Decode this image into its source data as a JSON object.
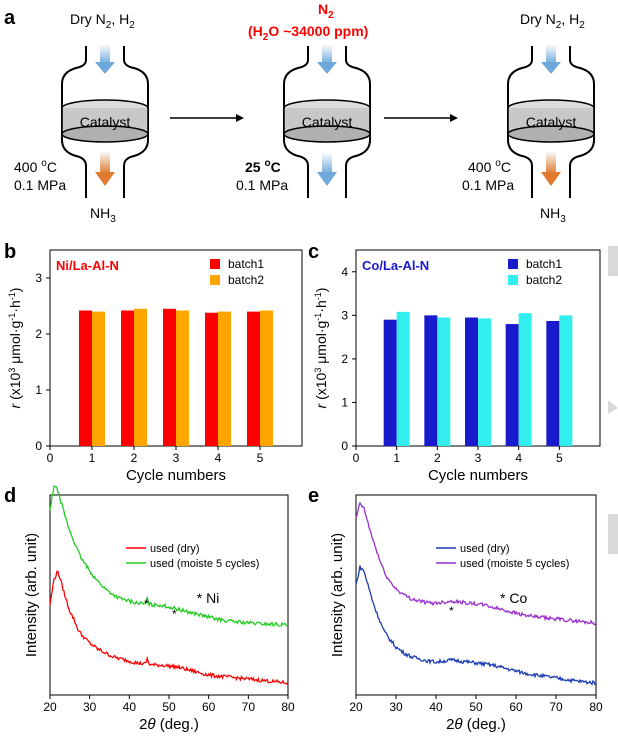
{
  "panel_letters": {
    "a": "a",
    "b": "b",
    "c": "c",
    "d": "d",
    "e": "e"
  },
  "scheme": {
    "catalyst_label": "Catalyst",
    "reactor1": {
      "gas_in": "Dry N2, H2",
      "gas_in_parts": [
        "Dry N",
        "2",
        ", H",
        "2"
      ],
      "temp": "400 ",
      "temp_unit": "o",
      "temp_c": "C",
      "pressure": "0.1 MPa",
      "gas_out": "NH",
      "gas_out_sub": "3"
    },
    "reactor2": {
      "gas_in_top": "N",
      "gas_in_top_sub": "2",
      "gas_in_cond_a": "(H",
      "gas_in_cond_sub": "2",
      "gas_in_cond_b": "O ~34000 ppm)",
      "temp": "25 ",
      "temp_unit": "o",
      "temp_c": "C",
      "pressure": "0.1 MPa"
    },
    "reactor3": {
      "gas_in_parts": [
        "Dry N",
        "2",
        ", H",
        "2"
      ],
      "temp": "400 ",
      "temp_unit": "o",
      "temp_c": "C",
      "pressure": "0.1 MPa",
      "gas_out": "NH",
      "gas_out_sub": "3"
    },
    "colors": {
      "in_arrow": "#6fa8dc",
      "out_arrow": "#e07a2e",
      "catalyst_fill": "#c8c8c8",
      "highlight": "#ff0000"
    }
  },
  "chart_data": [
    {
      "type": "bar",
      "panel": "b",
      "inset_label": "Ni/La-Al-N",
      "inset_color": "#ff0000",
      "categories": [
        "1",
        "2",
        "3",
        "4",
        "5"
      ],
      "series": [
        {
          "name": "batch1",
          "color": "#ff0000",
          "values": [
            2.42,
            2.42,
            2.45,
            2.38,
            2.4
          ]
        },
        {
          "name": "batch2",
          "color": "#ffa500",
          "values": [
            2.4,
            2.45,
            2.42,
            2.4,
            2.42
          ]
        }
      ],
      "xlabel": "Cycle numbers",
      "ylabel_parts": [
        "r",
        " (x10",
        "3",
        " μmol·g",
        "-1",
        "·h",
        "-1",
        ")"
      ],
      "xlim": [
        0,
        6
      ],
      "ylim": [
        0,
        3.5
      ],
      "xticks": [
        "0",
        "1",
        "2",
        "3",
        "4",
        "5"
      ],
      "yticks": [
        "0",
        "1",
        "2",
        "3"
      ],
      "legend": "top-right"
    },
    {
      "type": "bar",
      "panel": "c",
      "inset_label": "Co/La-Al-N",
      "inset_color": "#1a1acd",
      "categories": [
        "1",
        "2",
        "3",
        "4",
        "5"
      ],
      "series": [
        {
          "name": "batch1",
          "color": "#1a1acd",
          "values": [
            2.9,
            3.0,
            2.95,
            2.8,
            2.87
          ]
        },
        {
          "name": "batch2",
          "color": "#33eeee",
          "values": [
            3.08,
            2.95,
            2.93,
            3.05,
            3.0
          ]
        }
      ],
      "xlabel": "Cycle numbers",
      "ylabel_parts": [
        "r",
        " (x10",
        "3",
        " μmol·g",
        "-1",
        "·h",
        "-1",
        ")"
      ],
      "xlim": [
        0,
        6
      ],
      "ylim": [
        0,
        4.5
      ],
      "xticks": [
        "0",
        "1",
        "2",
        "3",
        "4",
        "5"
      ],
      "yticks": [
        "0",
        "1",
        "2",
        "3",
        "4"
      ],
      "legend": "top-right"
    },
    {
      "type": "line",
      "panel": "d",
      "xlabel": "2θ (deg.)",
      "ylabel": "Intensity (arb. unit)",
      "xlim": [
        20,
        80
      ],
      "xticks": [
        "20",
        "30",
        "40",
        "50",
        "60",
        "70",
        "80"
      ],
      "series": [
        {
          "name": "used (dry)",
          "color": "#ff0000",
          "x": [
            20,
            21,
            22,
            23,
            24,
            25,
            26,
            27,
            28,
            30,
            32,
            34,
            36,
            38,
            40,
            42,
            44,
            44.5,
            45,
            46,
            48,
            50,
            52,
            54,
            56,
            58,
            60,
            62,
            65,
            70,
            75,
            80
          ],
          "y": [
            0.45,
            0.58,
            0.62,
            0.55,
            0.48,
            0.42,
            0.38,
            0.33,
            0.3,
            0.26,
            0.23,
            0.21,
            0.19,
            0.18,
            0.17,
            0.16,
            0.155,
            0.18,
            0.155,
            0.15,
            0.15,
            0.145,
            0.14,
            0.13,
            0.12,
            0.11,
            0.1,
            0.095,
            0.09,
            0.08,
            0.07,
            0.06
          ]
        },
        {
          "name": "used (moiste 5 cycles)",
          "color": "#22cc22",
          "x": [
            20,
            21,
            22,
            23,
            24,
            25,
            26,
            27,
            28,
            30,
            32,
            34,
            36,
            38,
            40,
            42,
            44,
            44.5,
            45,
            46,
            48,
            50,
            52,
            54,
            56,
            58,
            60,
            62,
            65,
            70,
            75,
            80
          ],
          "y": [
            0.92,
            1.05,
            1.02,
            0.95,
            0.88,
            0.82,
            0.77,
            0.72,
            0.68,
            0.62,
            0.57,
            0.53,
            0.5,
            0.48,
            0.47,
            0.46,
            0.455,
            0.48,
            0.455,
            0.45,
            0.45,
            0.44,
            0.43,
            0.42,
            0.41,
            0.4,
            0.39,
            0.38,
            0.37,
            0.36,
            0.355,
            0.35
          ]
        }
      ],
      "annotations": [
        "*",
        "*",
        "* Ni"
      ],
      "legend": "top-right"
    },
    {
      "type": "line",
      "panel": "e",
      "xlabel": "2θ (deg.)",
      "ylabel": "Intensity (arb. unit)",
      "xlim": [
        20,
        80
      ],
      "xticks": [
        "20",
        "30",
        "40",
        "50",
        "60",
        "70",
        "80"
      ],
      "series": [
        {
          "name": "used (dry)",
          "color": "#1a3cb4",
          "x": [
            20,
            21,
            22,
            23,
            24,
            25,
            26,
            27,
            28,
            30,
            32,
            34,
            36,
            38,
            40,
            42,
            44,
            46,
            48,
            50,
            52,
            54,
            56,
            58,
            60,
            62,
            65,
            70,
            75,
            80
          ],
          "y": [
            0.55,
            0.64,
            0.62,
            0.55,
            0.48,
            0.42,
            0.37,
            0.32,
            0.29,
            0.24,
            0.21,
            0.19,
            0.18,
            0.17,
            0.165,
            0.17,
            0.175,
            0.17,
            0.165,
            0.16,
            0.155,
            0.15,
            0.14,
            0.13,
            0.12,
            0.11,
            0.1,
            0.085,
            0.07,
            0.06
          ]
        },
        {
          "name": "used (moiste 5 cycles)",
          "color": "#9a2fd0",
          "x": [
            20,
            21,
            22,
            23,
            24,
            25,
            26,
            27,
            28,
            30,
            32,
            34,
            36,
            38,
            40,
            42,
            44,
            46,
            48,
            50,
            52,
            54,
            56,
            58,
            60,
            62,
            65,
            70,
            75,
            80
          ],
          "y": [
            0.88,
            0.96,
            0.93,
            0.86,
            0.79,
            0.73,
            0.67,
            0.62,
            0.58,
            0.53,
            0.5,
            0.48,
            0.47,
            0.46,
            0.46,
            0.465,
            0.47,
            0.465,
            0.46,
            0.455,
            0.45,
            0.44,
            0.43,
            0.42,
            0.41,
            0.4,
            0.39,
            0.38,
            0.37,
            0.36
          ]
        }
      ],
      "annotations": [
        "*",
        "* Co"
      ],
      "legend": "top-right"
    }
  ]
}
